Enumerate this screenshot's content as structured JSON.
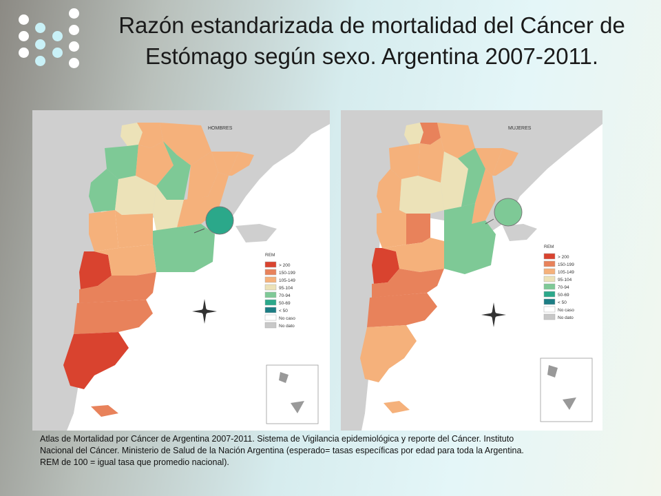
{
  "title_line1": "Razón estandarizada de mortalidad del Cáncer de",
  "title_line2": "Estómago según sexo. Argentina 2007-2011.",
  "maps": {
    "left": {
      "title": "HOMBRES"
    },
    "right": {
      "title": "MUJERES"
    }
  },
  "legend": {
    "title": "REM",
    "items": [
      {
        "label": "> 200",
        "color": "#d9432f"
      },
      {
        "label": "150-199",
        "color": "#e8825b"
      },
      {
        "label": "105-149",
        "color": "#f5b17b"
      },
      {
        "label": "95-104",
        "color": "#ece2b8"
      },
      {
        "label": "70-94",
        "color": "#7ec996"
      },
      {
        "label": "50-69",
        "color": "#2ba88a"
      },
      {
        "label": "< 50",
        "color": "#1c7d84"
      },
      {
        "label": "No caso",
        "color": "#ffffff"
      },
      {
        "label": "No dato",
        "color": "#c8c8c8"
      }
    ]
  },
  "caption_line1": "Atlas de Mortalidad por Cáncer de Argentina 2007-2011. Sistema de Vigilancia epidemiológica y reporte del Cáncer. Instituto",
  "caption_line2": "Nacional del Cáncer. Ministerio de Salud de la Nación Argentina (esperado= tasas específicas por edad para toda la Argentina.",
  "caption_line3": "REM de 100 = igual tasa que promedio nacional).",
  "colors": {
    "dot_white": "#ffffff",
    "dot_cyan": "#c9f1f7",
    "neighbor_land": "#cfcfcf"
  }
}
